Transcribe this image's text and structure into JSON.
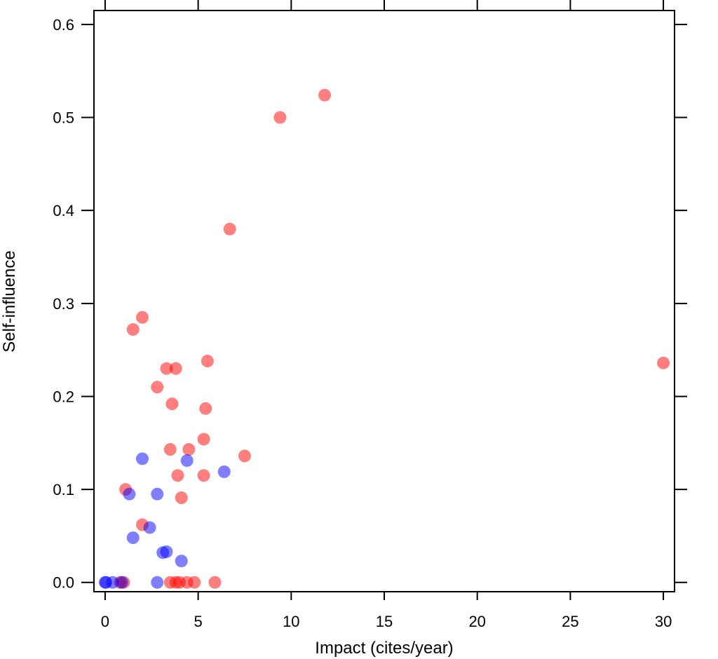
{
  "chart_data": {
    "type": "scatter",
    "title": "",
    "xlabel": "Impact (cites/year)",
    "ylabel": "Self-influence",
    "xlim": [
      -0.6,
      30.6
    ],
    "ylim": [
      -0.01,
      0.615
    ],
    "xticks": [
      0,
      5,
      10,
      15,
      20,
      25,
      30
    ],
    "xtick_labels": [
      "0",
      "5",
      "10",
      "15",
      "20",
      "25",
      "30"
    ],
    "yticks": [
      0.0,
      0.1,
      0.2,
      0.3,
      0.4,
      0.5,
      0.6
    ],
    "ytick_labels": [
      "0.0",
      "0.1",
      "0.2",
      "0.3",
      "0.4",
      "0.5",
      "0.6"
    ],
    "grid": false,
    "legend": "none",
    "series": [
      {
        "name": "red",
        "color": "#ff0000",
        "opacity": 0.5,
        "points": [
          {
            "x": 30.0,
            "y": 0.236
          },
          {
            "x": 11.8,
            "y": 0.524
          },
          {
            "x": 9.4,
            "y": 0.5
          },
          {
            "x": 6.7,
            "y": 0.38
          },
          {
            "x": 2.0,
            "y": 0.285
          },
          {
            "x": 1.5,
            "y": 0.272
          },
          {
            "x": 3.3,
            "y": 0.23
          },
          {
            "x": 3.8,
            "y": 0.23
          },
          {
            "x": 5.5,
            "y": 0.238
          },
          {
            "x": 2.8,
            "y": 0.21
          },
          {
            "x": 3.6,
            "y": 0.192
          },
          {
            "x": 5.4,
            "y": 0.187
          },
          {
            "x": 3.5,
            "y": 0.143
          },
          {
            "x": 4.5,
            "y": 0.143
          },
          {
            "x": 5.3,
            "y": 0.154
          },
          {
            "x": 7.5,
            "y": 0.136
          },
          {
            "x": 3.9,
            "y": 0.115
          },
          {
            "x": 5.3,
            "y": 0.115
          },
          {
            "x": 4.1,
            "y": 0.091
          },
          {
            "x": 1.1,
            "y": 0.1
          },
          {
            "x": 2.0,
            "y": 0.062
          },
          {
            "x": 0.8,
            "y": 0.0
          },
          {
            "x": 1.0,
            "y": 0.0
          },
          {
            "x": 3.5,
            "y": 0.0
          },
          {
            "x": 3.8,
            "y": 0.0
          },
          {
            "x": 4.0,
            "y": 0.0
          },
          {
            "x": 4.4,
            "y": 0.0
          },
          {
            "x": 4.8,
            "y": 0.0
          },
          {
            "x": 5.9,
            "y": 0.0
          }
        ]
      },
      {
        "name": "blue",
        "color": "#0000ff",
        "opacity": 0.5,
        "points": [
          {
            "x": 2.0,
            "y": 0.133
          },
          {
            "x": 4.4,
            "y": 0.131
          },
          {
            "x": 6.4,
            "y": 0.119
          },
          {
            "x": 2.8,
            "y": 0.095
          },
          {
            "x": 1.3,
            "y": 0.095
          },
          {
            "x": 2.4,
            "y": 0.059
          },
          {
            "x": 1.5,
            "y": 0.048
          },
          {
            "x": 3.1,
            "y": 0.032
          },
          {
            "x": 3.3,
            "y": 0.033
          },
          {
            "x": 4.1,
            "y": 0.023
          },
          {
            "x": 0.0,
            "y": 0.0
          },
          {
            "x": 0.05,
            "y": 0.0
          },
          {
            "x": 0.4,
            "y": 0.0
          },
          {
            "x": 0.9,
            "y": 0.0
          },
          {
            "x": 2.8,
            "y": 0.0
          }
        ]
      }
    ]
  }
}
